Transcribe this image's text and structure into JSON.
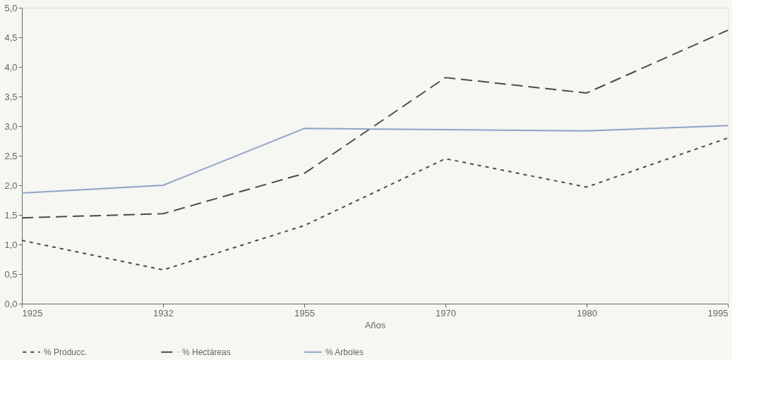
{
  "chart_data": {
    "type": "line",
    "xlabel": "Años",
    "categories": [
      "1925",
      "1932",
      "1955",
      "1970",
      "1980",
      "1995"
    ],
    "series": [
      {
        "name": "% Producc.",
        "color": "#4a4a4a",
        "line_style": "dotted",
        "values": [
          1.07,
          0.57,
          1.32,
          2.45,
          1.97,
          2.8
        ]
      },
      {
        "name": "% Hectáreas",
        "color": "#4a4a4a",
        "line_style": "dashed",
        "values": [
          1.45,
          1.52,
          2.2,
          3.82,
          3.56,
          4.62
        ]
      },
      {
        "name": "% Arboles",
        "color": "#8fa3c8",
        "line_style": "solid",
        "values": [
          1.87,
          2.0,
          2.96,
          2.94,
          2.92,
          3.01
        ]
      }
    ],
    "ylim": [
      0,
      5
    ],
    "yticks": [
      {
        "value": 0,
        "label": "0,0"
      },
      {
        "value": 0.5,
        "label": "0,5"
      },
      {
        "value": 1,
        "label": "1,0"
      },
      {
        "value": 1.5,
        "label": "1,5"
      },
      {
        "value": 2,
        "label": "2,0"
      },
      {
        "value": 2.5,
        "label": "2,5"
      },
      {
        "value": 3,
        "label": "3,0"
      },
      {
        "value": 3.5,
        "label": "3,5"
      },
      {
        "value": 4,
        "label": "4,0"
      },
      {
        "value": 4.5,
        "label": "4,5"
      },
      {
        "value": 5,
        "label": "5,0"
      }
    ],
    "grid": false,
    "legend": "bottom",
    "marker": "none"
  }
}
